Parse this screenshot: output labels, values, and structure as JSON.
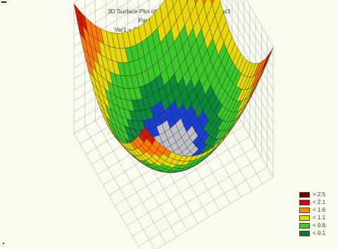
{
  "chart_data": {
    "type": "surface3d",
    "title": "3D Surface Plot of Var1 against Var2 and Var3",
    "subtitle": "Paraboloid.sta 4v*900c",
    "subtitle2": "Var1 = Distance Weighted Least Squares",
    "surface": "paraboloid",
    "z_range": [
      0,
      2.6
    ],
    "grid": true,
    "legend": {
      "placement": "bottom-right",
      "entries": [
        {
          "label": "> 2.5",
          "color": "#6e0000"
        },
        {
          "label": "< 2.1",
          "color": "#d40000"
        },
        {
          "label": "< 1.6",
          "color": "#ff8c00"
        },
        {
          "label": "< 1.1",
          "color": "#dddd00"
        },
        {
          "label": "< 0.6",
          "color": "#3ccf2a"
        },
        {
          "label": "< 0.1",
          "color": "#0a7a2e"
        }
      ]
    }
  }
}
